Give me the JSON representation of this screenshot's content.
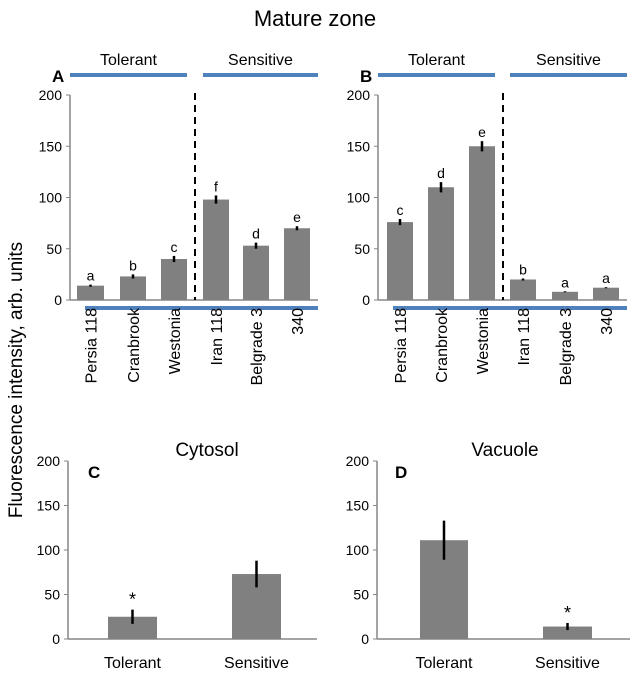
{
  "title": "Mature zone",
  "ylabel": "Fluorescence intensity, arb. units",
  "colors": {
    "bar": "#808080",
    "group_line": "#4f81bd",
    "axis": "#868686",
    "error": "#000000"
  },
  "group_labels": {
    "tolerant": "Tolerant",
    "sensitive": "Sensitive"
  },
  "chart_data": [
    {
      "type": "bar",
      "panel": "A",
      "title": "",
      "ylim": [
        0,
        200
      ],
      "yticks": [
        0,
        50,
        100,
        150,
        200
      ],
      "categories": [
        "Persia 118",
        "Cranbrook",
        "Westonia",
        "Iran 118",
        "Belgrade 3",
        "340"
      ],
      "values": [
        14,
        23,
        40,
        98,
        53,
        70
      ],
      "errors": [
        1,
        2,
        3,
        4,
        3,
        2
      ],
      "annotations": [
        "a",
        "b",
        "c",
        "f",
        "d",
        "e"
      ]
    },
    {
      "type": "bar",
      "panel": "B",
      "title": "",
      "ylim": [
        0,
        200
      ],
      "yticks": [
        0,
        50,
        100,
        150,
        200
      ],
      "categories": [
        "Persia 118",
        "Cranbrook",
        "Westonia",
        "Iran 118",
        "Belgrade 3",
        "340"
      ],
      "values": [
        76,
        110,
        150,
        20,
        8,
        12
      ],
      "errors": [
        3,
        5,
        5,
        1,
        0.5,
        0.5
      ],
      "annotations": [
        "c",
        "d",
        "e",
        "b",
        "a",
        "a"
      ]
    },
    {
      "type": "bar",
      "panel": "C",
      "title": "Cytosol",
      "ylim": [
        0,
        200
      ],
      "yticks": [
        0,
        50,
        100,
        150,
        200
      ],
      "categories": [
        "Tolerant",
        "Sensitive"
      ],
      "values": [
        25,
        73
      ],
      "errors": [
        8,
        15
      ],
      "annotations": [
        "*",
        ""
      ]
    },
    {
      "type": "bar",
      "panel": "D",
      "title": "Vacuole",
      "ylim": [
        0,
        200
      ],
      "yticks": [
        0,
        50,
        100,
        150,
        200
      ],
      "categories": [
        "Tolerant",
        "Sensitive"
      ],
      "values": [
        111,
        14
      ],
      "errors": [
        22,
        4
      ],
      "annotations": [
        "",
        "*"
      ]
    }
  ]
}
